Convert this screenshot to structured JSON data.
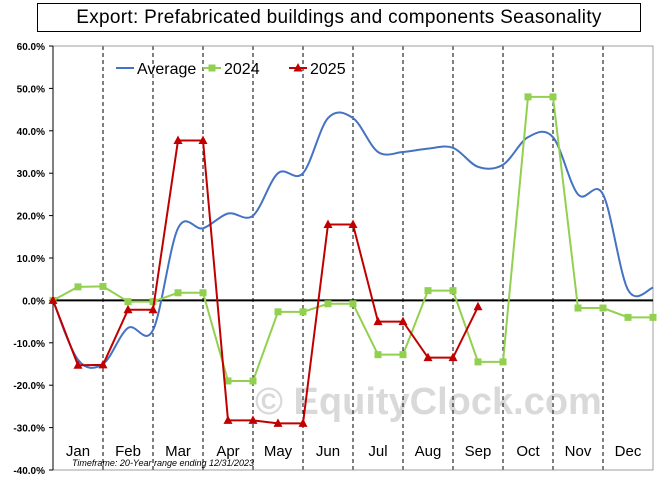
{
  "chart_data": {
    "type": "line",
    "title": "Export:  Prefabricated  buildings and components  Seasonality",
    "footnote": "Timeframe: 20-Year range ending 12/31/2023",
    "watermark": "© EquityClock.com",
    "ylim": [
      -40,
      60
    ],
    "y_ticks": [
      60,
      50,
      40,
      30,
      20,
      10,
      0,
      -10,
      -20,
      -30,
      -40
    ],
    "y_tick_labels": [
      "60.0%",
      "50.0%",
      "40.0%",
      "30.0%",
      "20.0%",
      "10.0%",
      "0.0%",
      "-10.0%",
      "-20.0%",
      "-30.0%",
      "-40.0%"
    ],
    "xlim": [
      0,
      12
    ],
    "months": [
      "Jan",
      "Feb",
      "Mar",
      "Apr",
      "May",
      "Jun",
      "Jul",
      "Aug",
      "Sep",
      "Oct",
      "Nov",
      "Dec"
    ],
    "legend_position": "top-left",
    "grid": "vertical dashed month separators",
    "series": [
      {
        "name": "Average",
        "color": "#4472c4",
        "marker": "none",
        "x": [
          0,
          0.5,
          1.0,
          1.5,
          2.0,
          2.5,
          3.0,
          3.5,
          4.0,
          4.5,
          5.0,
          5.5,
          6.0,
          6.5,
          7.0,
          7.5,
          8.0,
          8.5,
          9.0,
          9.5,
          10.0,
          10.5,
          11.0,
          11.5,
          12.0
        ],
        "values": [
          0,
          -14,
          -15,
          -6.5,
          -7,
          17,
          17,
          20.5,
          20,
          30,
          30,
          43,
          43,
          35,
          35,
          35.8,
          36,
          31.5,
          32,
          38.5,
          38.5,
          25,
          25,
          2.5,
          3
        ]
      },
      {
        "name": "2024",
        "color": "#92d050",
        "marker": "square",
        "x": [
          0,
          0.5,
          1.0,
          1.5,
          2.0,
          2.5,
          3.0,
          3.5,
          4.0,
          4.5,
          5.0,
          5.5,
          6.0,
          6.5,
          7.0,
          7.5,
          8.0,
          8.5,
          9.0,
          9.5,
          10.0,
          10.5,
          11.0,
          11.5,
          12.0
        ],
        "values": [
          0,
          3.2,
          3.3,
          -0.3,
          -0.3,
          1.8,
          1.8,
          -19,
          -19,
          -2.7,
          -2.7,
          -0.8,
          -0.8,
          -12.8,
          -12.8,
          2.3,
          2.3,
          -14.5,
          -14.5,
          48,
          48,
          -1.8,
          -1.8,
          -4,
          -4
        ]
      },
      {
        "name": "2025",
        "color": "#c00000",
        "marker": "triangle",
        "x": [
          0,
          0.5,
          1.0,
          1.5,
          2.0,
          2.5,
          3.0,
          3.5,
          4.0,
          4.5,
          5.0,
          5.5,
          6.0,
          6.5,
          7.0,
          7.5,
          8.0,
          8.5
        ],
        "values": [
          0,
          -15.3,
          -15.2,
          -2.2,
          -2.2,
          37.7,
          37.7,
          -28.3,
          -28.3,
          -29,
          -29,
          17.9,
          17.9,
          -5,
          -5,
          -13.5,
          -13.5,
          -1.5
        ]
      }
    ]
  }
}
